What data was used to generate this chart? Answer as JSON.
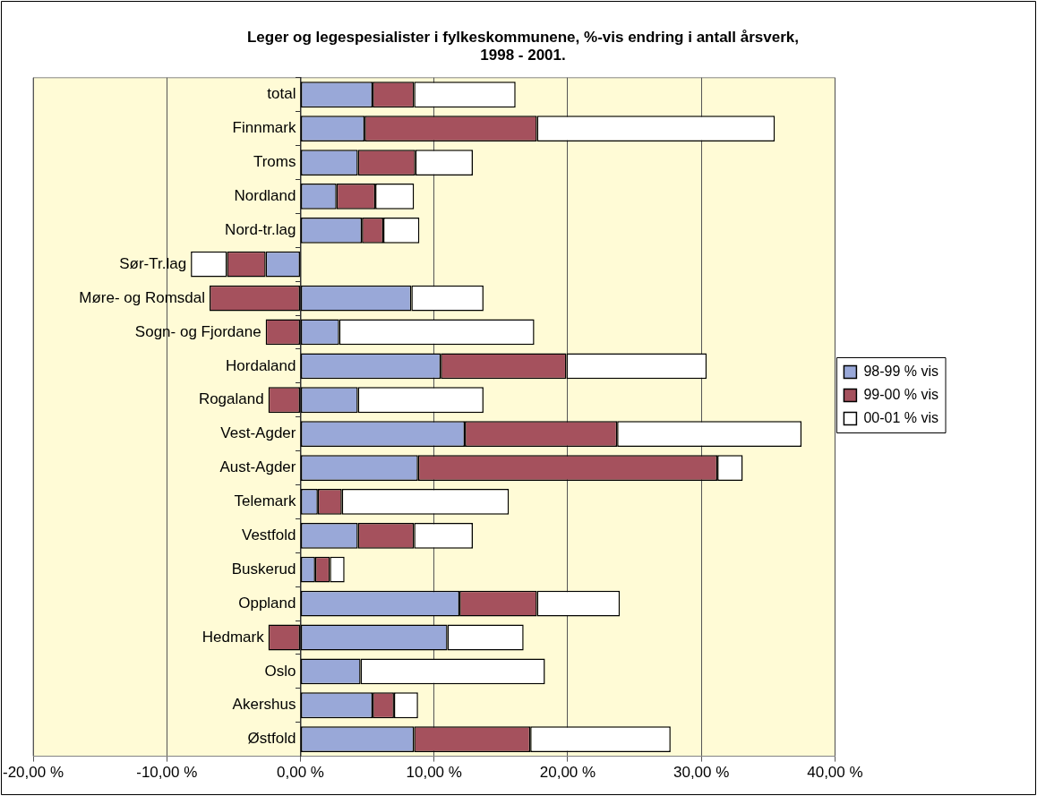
{
  "chart_data": {
    "type": "bar",
    "orientation": "horizontal",
    "stacked": true,
    "title": "Leger og legespesialister i fylkeskommunene, %-vis endring i antall årsverk, 1998 - 2001.",
    "categories": [
      "total",
      "Finnmark",
      "Troms",
      "Nordland",
      "Nord-tr.lag",
      "Sør-Tr.lag",
      "Møre- og Romsdal",
      "Sogn- og Fjordane",
      "Hordaland",
      "Rogaland",
      "Vest-Agder",
      "Aust-Agder",
      "Telemark",
      "Vestfold",
      "Buskerud",
      "Oppland",
      "Hedmark",
      "Oslo",
      "Akershus",
      "Østfold"
    ],
    "series": [
      {
        "name": "98-99 % vis",
        "color": "#99a8d8",
        "values": [
          5.4,
          4.8,
          4.3,
          2.7,
          4.6,
          -2.6,
          8.3,
          2.9,
          10.5,
          4.3,
          12.3,
          8.8,
          1.3,
          4.3,
          1.1,
          11.9,
          11.0,
          4.5,
          5.4,
          8.5
        ]
      },
      {
        "name": "99-00 % vis",
        "color": "#a5515d",
        "values": [
          3.1,
          12.9,
          4.3,
          2.9,
          1.6,
          -2.9,
          -6.8,
          -2.6,
          9.4,
          -2.4,
          11.4,
          22.4,
          1.8,
          4.2,
          1.1,
          5.8,
          -2.4,
          0,
          1.6,
          8.7
        ]
      },
      {
        "name": "00-01 % vis",
        "color": "#ffffff",
        "values": [
          7.6,
          17.8,
          4.3,
          2.9,
          2.7,
          -2.7,
          5.4,
          14.6,
          10.5,
          9.4,
          13.8,
          1.9,
          12.5,
          4.4,
          1.1,
          6.2,
          5.7,
          13.8,
          1.8,
          10.5
        ]
      }
    ],
    "xlim": [
      -20,
      40
    ],
    "xticks": [
      {
        "value": -20,
        "label": "-20,00 %"
      },
      {
        "value": -10,
        "label": "-10,00 %"
      },
      {
        "value": 0,
        "label": "0,00 %"
      },
      {
        "value": 10,
        "label": "10,00 %"
      },
      {
        "value": 20,
        "label": "20,00 %"
      },
      {
        "value": 30,
        "label": "30,00 %"
      },
      {
        "value": 40,
        "label": "40,00 %"
      }
    ],
    "grid": "x",
    "legend": "right"
  }
}
